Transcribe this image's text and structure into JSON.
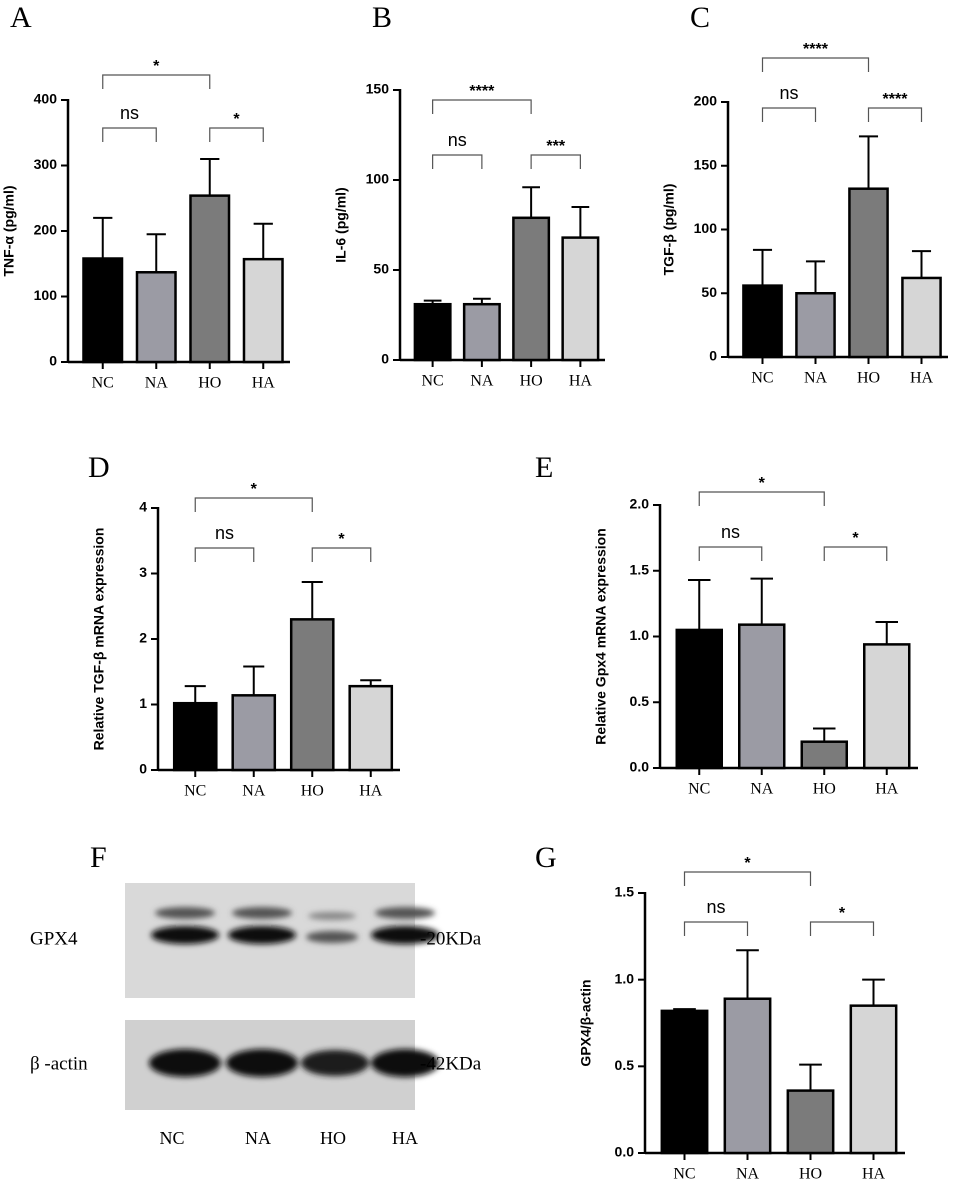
{
  "chart_data": [
    {
      "type": "bar",
      "panel": "A",
      "ylabel": "TNF-α (pg/ml)",
      "categories": [
        "NC",
        "NA",
        "HO",
        "HA"
      ],
      "values": [
        158,
        137,
        254,
        157
      ],
      "errors": [
        62,
        58,
        56,
        54
      ],
      "colors": [
        "#000000",
        "#9b9ba4",
        "#7b7b7b",
        "#d6d6d6"
      ],
      "ylim": [
        0,
        400
      ],
      "yticks": [
        0,
        100,
        200,
        300,
        400
      ],
      "brackets": [
        {
          "label": "ns",
          "from": 0,
          "to": 1
        },
        {
          "label": "*",
          "from": 2,
          "to": 3
        },
        {
          "label": "*",
          "from": 0,
          "to": 2
        }
      ]
    },
    {
      "type": "bar",
      "panel": "B",
      "ylabel": "IL-6 (pg/ml)",
      "categories": [
        "NC",
        "NA",
        "HO",
        "HA"
      ],
      "values": [
        31,
        31,
        79,
        68
      ],
      "errors": [
        2,
        3,
        17,
        17
      ],
      "colors": [
        "#000000",
        "#9b9ba4",
        "#7b7b7b",
        "#d6d6d6"
      ],
      "ylim": [
        0,
        150
      ],
      "yticks": [
        0,
        50,
        100,
        150
      ],
      "brackets": [
        {
          "label": "ns",
          "from": 0,
          "to": 1
        },
        {
          "label": "***",
          "from": 2,
          "to": 3
        },
        {
          "label": "****",
          "from": 0,
          "to": 2
        }
      ]
    },
    {
      "type": "bar",
      "panel": "C",
      "ylabel": "TGF-β (pg/ml)",
      "categories": [
        "NC",
        "NA",
        "HO",
        "HA"
      ],
      "values": [
        56,
        50,
        132,
        62
      ],
      "errors": [
        28,
        25,
        41,
        21
      ],
      "colors": [
        "#000000",
        "#9b9ba4",
        "#7b7b7b",
        "#d6d6d6"
      ],
      "ylim": [
        0,
        200
      ],
      "yticks": [
        0,
        50,
        100,
        150,
        200
      ],
      "brackets": [
        {
          "label": "ns",
          "from": 0,
          "to": 1
        },
        {
          "label": "****",
          "from": 2,
          "to": 3
        },
        {
          "label": "****",
          "from": 0,
          "to": 2
        }
      ]
    },
    {
      "type": "bar",
      "panel": "D",
      "ylabel": "Relative TGF-β mRNA expression",
      "categories": [
        "NC",
        "NA",
        "HO",
        "HA"
      ],
      "values": [
        1.02,
        1.14,
        2.3,
        1.28
      ],
      "errors": [
        0.26,
        0.44,
        0.57,
        0.09
      ],
      "colors": [
        "#000000",
        "#9b9ba4",
        "#7b7b7b",
        "#d6d6d6"
      ],
      "ylim": [
        0,
        4
      ],
      "yticks": [
        0,
        1,
        2,
        3,
        4
      ],
      "brackets": [
        {
          "label": "ns",
          "from": 0,
          "to": 1
        },
        {
          "label": "*",
          "from": 2,
          "to": 3
        },
        {
          "label": "*",
          "from": 0,
          "to": 2
        }
      ]
    },
    {
      "type": "bar",
      "panel": "E",
      "ylabel": "Relative Gpx4 mRNA expression",
      "categories": [
        "NC",
        "NA",
        "HO",
        "HA"
      ],
      "values": [
        1.05,
        1.09,
        0.2,
        0.94
      ],
      "errors": [
        0.38,
        0.35,
        0.1,
        0.17
      ],
      "colors": [
        "#000000",
        "#9b9ba4",
        "#7b7b7b",
        "#d6d6d6"
      ],
      "ylim": [
        0,
        2
      ],
      "yticks": [
        {
          "value": 0,
          "label": "0.0"
        },
        {
          "value": 0.5,
          "label": "0.5"
        },
        {
          "value": 1,
          "label": "1.0"
        },
        {
          "value": 1.5,
          "label": "1.5"
        },
        {
          "value": 2,
          "label": "2.0"
        }
      ],
      "brackets": [
        {
          "label": "ns",
          "from": 0,
          "to": 1
        },
        {
          "label": "*",
          "from": 2,
          "to": 3
        },
        {
          "label": "*",
          "from": 0,
          "to": 2
        }
      ]
    },
    {
      "type": "bar",
      "panel": "G",
      "ylabel": "GPX4/β-actin",
      "categories": [
        "NC",
        "NA",
        "HO",
        "HA"
      ],
      "values": [
        0.82,
        0.89,
        0.36,
        0.85
      ],
      "errors": [
        0.01,
        0.28,
        0.15,
        0.15
      ],
      "colors": [
        "#000000",
        "#9b9ba4",
        "#7b7b7b",
        "#d6d6d6"
      ],
      "ylim": [
        0,
        1.5
      ],
      "yticks": [
        {
          "value": 0,
          "label": "0.0"
        },
        {
          "value": 0.5,
          "label": "0.5"
        },
        {
          "value": 1,
          "label": "1.0"
        },
        {
          "value": 1.5,
          "label": "1.5"
        }
      ],
      "brackets": [
        {
          "label": "ns",
          "from": 0,
          "to": 1
        },
        {
          "label": "*",
          "from": 2,
          "to": 3
        },
        {
          "label": "*",
          "from": 0,
          "to": 2
        }
      ]
    }
  ],
  "blot": {
    "panel": "F",
    "rows": [
      {
        "label": "GPX4",
        "size": "-20KDa"
      },
      {
        "label": "β -actin",
        "size": "-42KDa"
      }
    ],
    "lanes": [
      "NC",
      "NA",
      "HO",
      "HA"
    ]
  }
}
